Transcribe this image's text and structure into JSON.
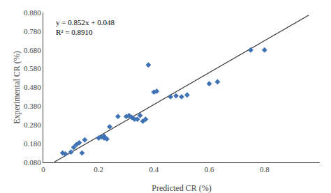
{
  "chart_data": {
    "type": "scatter",
    "x_label": "Predicted CR (%)",
    "y_label": "Experimental CR (%)",
    "series": [
      {
        "type": "scatter",
        "color": "#3f72b5",
        "marker": "diamond",
        "x": [
          0.07,
          0.08,
          0.1,
          0.11,
          0.12,
          0.13,
          0.14,
          0.15,
          0.2,
          0.21,
          0.22,
          0.22,
          0.23,
          0.24,
          0.27,
          0.3,
          0.31,
          0.32,
          0.33,
          0.34,
          0.35,
          0.36,
          0.37,
          0.38,
          0.4,
          0.41,
          0.46,
          0.48,
          0.5,
          0.52,
          0.6,
          0.63,
          0.75,
          0.8
        ],
        "values": [
          0.13,
          0.125,
          0.135,
          0.16,
          0.175,
          0.185,
          0.13,
          0.2,
          0.21,
          0.215,
          0.21,
          0.22,
          0.205,
          0.27,
          0.325,
          0.325,
          0.33,
          0.32,
          0.31,
          0.31,
          0.33,
          0.3,
          0.31,
          0.6,
          0.455,
          0.46,
          0.43,
          0.435,
          0.43,
          0.44,
          0.5,
          0.51,
          0.68,
          0.68
        ]
      },
      {
        "type": "line",
        "color": "#333333",
        "line_style": "solid",
        "x": [
          0.04,
          0.96
        ],
        "values": [
          0.08208,
          0.86592
        ]
      }
    ],
    "annotations": [
      "y = 0.852x + 0.048",
      "R² = 0.8910"
    ],
    "xlim": [
      0,
      1
    ],
    "ylim": [
      0.08,
      0.88
    ],
    "xticks": [
      0,
      0.2,
      0.4,
      0.6,
      0.8
    ],
    "yticks": [
      {
        "value": 0.08,
        "label": "0.080"
      },
      {
        "value": 0.18,
        "label": "0.180"
      },
      {
        "value": 0.28,
        "label": "0.280"
      },
      {
        "value": 0.38,
        "label": "0.380"
      },
      {
        "value": 0.48,
        "label": "0.480"
      },
      {
        "value": 0.58,
        "label": "0.580"
      },
      {
        "value": 0.68,
        "label": "0.680"
      },
      {
        "value": 0.78,
        "label": "0.780"
      },
      {
        "value": 0.88,
        "label": "0.880"
      }
    ],
    "grid": false
  }
}
